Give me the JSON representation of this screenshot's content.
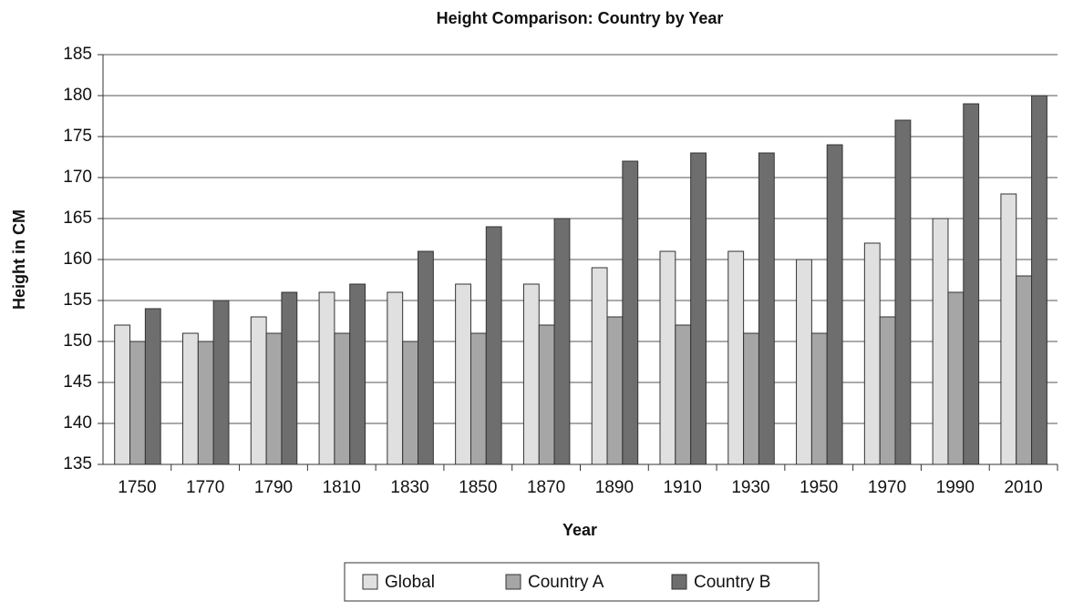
{
  "chart_data": {
    "type": "bar",
    "title": "Height Comparison: Country by Year",
    "x_label": "Year",
    "y_label": "Height in CM",
    "categories": [
      "1750",
      "1770",
      "1790",
      "1810",
      "1830",
      "1850",
      "1870",
      "1890",
      "1910",
      "1930",
      "1950",
      "1970",
      "1990",
      "2010"
    ],
    "series": [
      {
        "name": "Global",
        "color": "#e0e0e0",
        "values": [
          152,
          151,
          153,
          156,
          156,
          157,
          157,
          159,
          161,
          161,
          160,
          162,
          165,
          168
        ]
      },
      {
        "name": "Country A",
        "color": "#a6a6a6",
        "values": [
          150,
          150,
          151,
          151,
          150,
          151,
          152,
          153,
          152,
          151,
          151,
          153,
          156,
          158
        ]
      },
      {
        "name": "Country B",
        "color": "#6e6e6e",
        "values": [
          154,
          155,
          156,
          157,
          161,
          164,
          165,
          172,
          173,
          173,
          174,
          177,
          179,
          180
        ]
      }
    ],
    "ylim": [
      135,
      185
    ],
    "yticks": [
      135,
      140,
      145,
      150,
      155,
      160,
      165,
      170,
      175,
      180,
      185
    ],
    "grid": true,
    "legend": "bottom"
  }
}
